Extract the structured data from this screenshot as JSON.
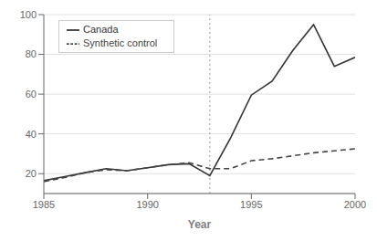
{
  "chart_data": {
    "type": "line",
    "x": [
      1985,
      1986,
      1987,
      1988,
      1989,
      1990,
      1991,
      1992,
      1993,
      1994,
      1995,
      1996,
      1997,
      1998,
      1999,
      2000
    ],
    "series": [
      {
        "name": "Canada",
        "color": "#333333",
        "line_style": "solid",
        "values": [
          16.5,
          18.5,
          20.5,
          22.5,
          21.5,
          23.0,
          24.5,
          25.0,
          19.0,
          38.0,
          59.5,
          66.5,
          82.0,
          95.0,
          74.0,
          78.5
        ]
      },
      {
        "name": "Synthetic control",
        "color": "#444444",
        "line_style": "dashed",
        "values": [
          16.0,
          18.0,
          20.5,
          22.0,
          21.5,
          23.0,
          24.5,
          25.5,
          22.5,
          22.5,
          26.5,
          27.5,
          29.0,
          30.5,
          31.5,
          32.5
        ]
      }
    ],
    "vlines": [
      1993
    ],
    "xlabel": "Year",
    "xlim": [
      1985,
      2000
    ],
    "xticks": [
      1985,
      1990,
      1995,
      2000
    ],
    "ylim": [
      10,
      100
    ],
    "yticks": [
      20,
      40,
      60,
      80,
      100
    ],
    "grid": true,
    "legend": "upper left"
  }
}
